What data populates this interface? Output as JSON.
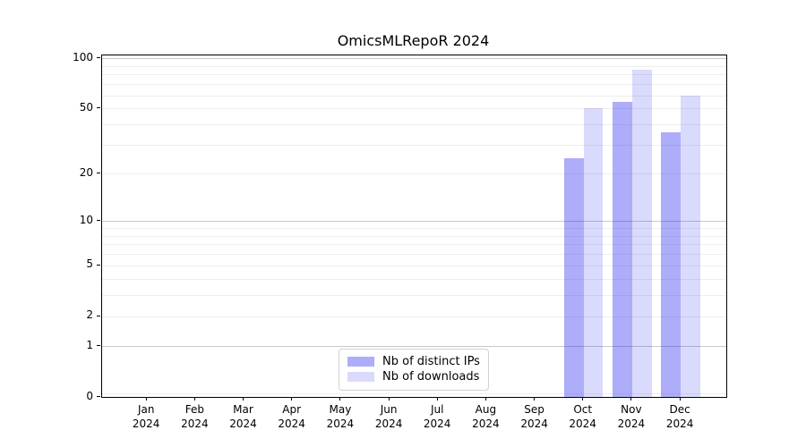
{
  "title": "OmicsMLRepoR 2024",
  "chart_data": {
    "type": "bar",
    "title": "OmicsMLRepoR 2024",
    "categories": [
      "Jan 2024",
      "Feb 2024",
      "Mar 2024",
      "Apr 2024",
      "May 2024",
      "Jun 2024",
      "Jul 2024",
      "Aug 2024",
      "Sep 2024",
      "Oct 2024",
      "Nov 2024",
      "Dec 2024"
    ],
    "x_tick_labels": {
      "months": [
        "Jan",
        "Feb",
        "Mar",
        "Apr",
        "May",
        "Jun",
        "Jul",
        "Aug",
        "Sep",
        "Oct",
        "Nov",
        "Dec"
      ],
      "year": "2024"
    },
    "series": [
      {
        "name": "Nb of distinct IPs",
        "color": "rgba(20,20,240,0.35)",
        "values": [
          null,
          null,
          null,
          null,
          null,
          null,
          null,
          null,
          null,
          25,
          55,
          36
        ]
      },
      {
        "name": "Nb of downloads",
        "color": "rgba(20,20,240,0.155)",
        "values": [
          null,
          null,
          null,
          null,
          null,
          null,
          null,
          null,
          null,
          50,
          85,
          60
        ]
      }
    ],
    "xlabel": "",
    "ylabel": "",
    "y_scale": "log10(value+1)",
    "ylim": [
      0,
      104
    ],
    "y_ticks": [
      0,
      1,
      2,
      5,
      10,
      20,
      50,
      100
    ],
    "gridlines": {
      "major": [
        1,
        10,
        100
      ],
      "minor": [
        0.05,
        2,
        3,
        4,
        5,
        6,
        7,
        8,
        9,
        20,
        30,
        40,
        50,
        60,
        70,
        80,
        90
      ]
    },
    "legend": {
      "position": "lower center",
      "items": [
        "Nb of distinct IPs",
        "Nb of downloads"
      ]
    },
    "colors": {
      "major_grid": "#c9c9c9",
      "minor_grid": "#eeeeee",
      "spine": "#000000",
      "background": "#ffffff"
    }
  }
}
